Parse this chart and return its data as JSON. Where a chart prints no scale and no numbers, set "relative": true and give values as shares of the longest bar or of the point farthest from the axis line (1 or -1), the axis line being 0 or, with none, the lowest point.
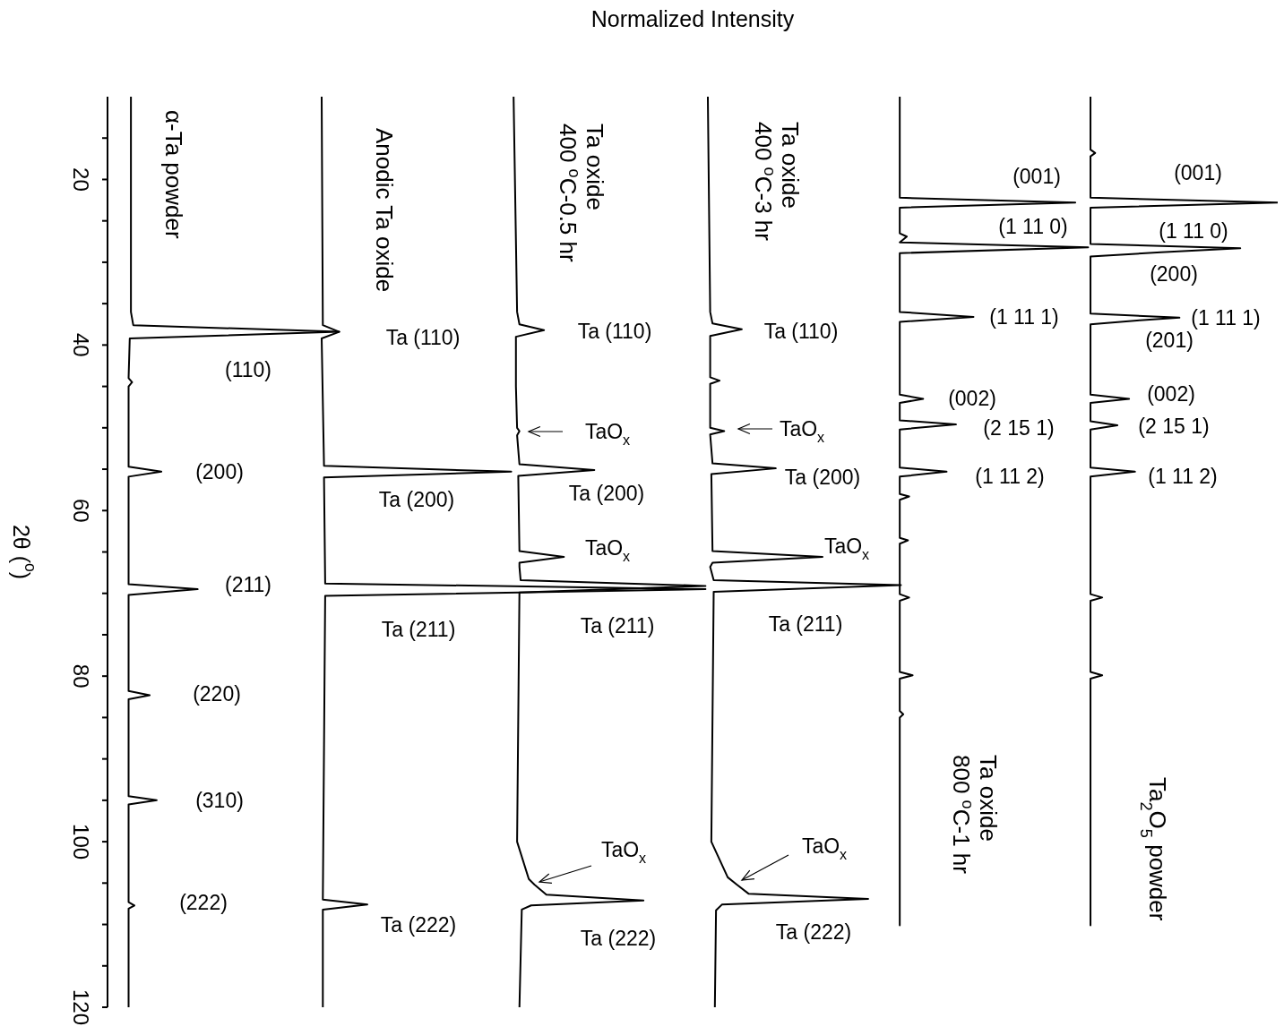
{
  "chart_data": {
    "type": "line",
    "orientation": "horizontal",
    "relative": true,
    "xlabel": "Normalized Intensity",
    "ylabel": "2θ ($^{o}$)",
    "ylim": [
      120,
      10
    ],
    "yticks": [
      {
        "value": 15,
        "label": null
      },
      20,
      {
        "value": 25,
        "label": null
      },
      {
        "value": 30,
        "label": null
      },
      {
        "value": 35,
        "label": null
      },
      40,
      {
        "value": 45,
        "label": null
      },
      {
        "value": 50,
        "label": null
      },
      {
        "value": 55,
        "label": null
      },
      60,
      {
        "value": 65,
        "label": null
      },
      {
        "value": 70,
        "label": null
      },
      {
        "value": 75,
        "label": null
      },
      80,
      {
        "value": 85,
        "label": null
      },
      {
        "value": 90,
        "label": null
      },
      {
        "value": 95,
        "label": null
      },
      100,
      {
        "value": 105,
        "label": null
      },
      {
        "value": 110,
        "label": null
      },
      {
        "value": 115,
        "label": null
      },
      120
    ],
    "line_style": "solid",
    "series": [
      {
        "name": "α-Ta powder",
        "color": "#000000",
        "x": [
          10,
          36,
          37.6,
          38.4,
          39.2,
          44,
          44.5,
          45,
          54.7,
          55.3,
          55.9,
          68.9,
          69.5,
          70.2,
          81.8,
          82.3,
          82.8,
          94.5,
          95,
          95.5,
          107.3,
          107.7,
          108.1,
          120
        ],
        "values": [
          0.02,
          0.02,
          0.022,
          0.198,
          0.019,
          0.018,
          0.021,
          0.018,
          0.018,
          0.046,
          0.018,
          0.018,
          0.077,
          0.018,
          0.018,
          0.036,
          0.018,
          0.018,
          0.042,
          0.018,
          0.018,
          0.023,
          0.018,
          0.018
        ]
      },
      {
        "name": "Anodic Ta oxide",
        "color": "#000000",
        "x": [
          10,
          37.6,
          38.4,
          39.2,
          54.6,
          55.3,
          56,
          68.8,
          69.5,
          70.3,
          107,
          107.6,
          108.2,
          120
        ],
        "values": [
          0.183,
          0.184,
          0.198,
          0.183,
          0.185,
          0.345,
          0.185,
          0.186,
          0.511,
          0.186,
          0.184,
          0.222,
          0.184,
          0.184
        ]
      },
      {
        "name": "Ta oxide\n400 $^{o}$C-0.5 hr",
        "color": "#000000",
        "x": [
          10,
          36,
          37.5,
          38.2,
          39,
          45,
          50,
          50.4,
          50.9,
          54.4,
          55.1,
          55.8,
          64.9,
          65.6,
          66.3,
          66.8,
          68.4,
          69.1,
          69.9,
          100,
          104.5,
          105.2,
          106.4,
          107.1,
          107.7,
          108.2,
          120
        ],
        "values": [
          0.347,
          0.35,
          0.352,
          0.373,
          0.349,
          0.349,
          0.35,
          0.352,
          0.35,
          0.352,
          0.416,
          0.351,
          0.352,
          0.39,
          0.352,
          0.352,
          0.353,
          0.511,
          0.352,
          0.35,
          0.36,
          0.365,
          0.375,
          0.458,
          0.362,
          0.354,
          0.352
        ]
      },
      {
        "name": "Ta oxide\n400 $^{o}$C-3 hr",
        "color": "#000000",
        "x": [
          10,
          36,
          37.4,
          38.1,
          38.9,
          43.9,
          44.3,
          44.7,
          50,
          50.4,
          50.8,
          54.3,
          54.9,
          55.6,
          64.9,
          65.6,
          66.3,
          66.8,
          68.4,
          69,
          69.8,
          100,
          104.3,
          105.2,
          106.3,
          106.9,
          107.6,
          108.3,
          120
        ],
        "values": [
          0.513,
          0.515,
          0.517,
          0.542,
          0.515,
          0.515,
          0.523,
          0.515,
          0.515,
          0.527,
          0.515,
          0.517,
          0.571,
          0.516,
          0.517,
          0.611,
          0.517,
          0.515,
          0.518,
          0.678,
          0.518,
          0.516,
          0.53,
          0.538,
          0.548,
          0.65,
          0.525,
          0.52,
          0.519
        ]
      },
      {
        "name": "Ta oxide\n800 $^{o}$C-1 hr",
        "color": "#000000",
        "x": [
          10,
          22.2,
          22.8,
          23.4,
          26.5,
          26.9,
          27.6,
          28.2,
          28.9,
          36,
          36.6,
          37.2,
          46,
          46.5,
          47,
          49.1,
          49.6,
          50.2,
          54.8,
          55.3,
          55.9,
          58,
          58.3,
          58.7,
          63.3,
          63.6,
          64,
          70.1,
          70.5,
          70.9,
          79.5,
          79.9,
          80.3,
          84.2,
          84.6,
          85,
          110.1
        ],
        "values": [
          0.677,
          0.677,
          0.827,
          0.677,
          0.677,
          0.683,
          0.677,
          0.838,
          0.677,
          0.677,
          0.74,
          0.677,
          0.677,
          0.697,
          0.677,
          0.677,
          0.725,
          0.677,
          0.677,
          0.717,
          0.677,
          0.677,
          0.685,
          0.677,
          0.677,
          0.684,
          0.677,
          0.677,
          0.685,
          0.677,
          0.677,
          0.688,
          0.677,
          0.677,
          0.68,
          0.677,
          0.677
        ]
      },
      {
        "name": "Ta$_{2}$O$_{5}$ powder",
        "color": "#000000",
        "x": [
          10,
          16.4,
          16.8,
          17.2,
          22.2,
          22.8,
          23.4,
          27.8,
          28.3,
          28.8,
          29.3,
          36.2,
          36.7,
          37,
          37.5,
          46,
          46.5,
          47,
          49.2,
          49.7,
          50.2,
          54.8,
          55.3,
          55.9,
          70.1,
          70.5,
          70.9,
          79.5,
          79.9,
          80.3,
          110.1
        ],
        "values": [
          0.84,
          0.84,
          0.844,
          0.84,
          0.84,
          1,
          0.84,
          0.84,
          0.968,
          0.9,
          0.84,
          0.84,
          0.916,
          0.882,
          0.84,
          0.84,
          0.873,
          0.84,
          0.84,
          0.863,
          0.84,
          0.84,
          0.878,
          0.84,
          0.84,
          0.85,
          0.84,
          0.84,
          0.85,
          0.84,
          0.84
        ]
      }
    ],
    "annotations": [
      "(110)",
      "(200)",
      "(211)",
      "(220)",
      "(310)",
      "(222)",
      "Ta (110)",
      "Ta (200)",
      "Ta (211)",
      "Ta (222)",
      "Ta (110)",
      "TaO$_{x}$",
      "Ta (200)",
      "TaO$_{x}$",
      "Ta (211)",
      "TaO$_{x}$",
      "Ta (222)",
      "Ta (110)",
      "TaO$_{x}$",
      "Ta (200)",
      "TaO$_{x}$",
      "Ta (211)",
      "TaO$_{x}$",
      "Ta (222)",
      "(001)",
      "(1 11 0)",
      "(1 11 1)",
      "(002)",
      "(2 15 1)",
      "(1 11 2)",
      "(001)",
      "(1 11 0)",
      "(200)",
      "(1 11 1)",
      "(201)",
      "(002)",
      "(2 15 1)",
      "(1 11 2)"
    ]
  }
}
